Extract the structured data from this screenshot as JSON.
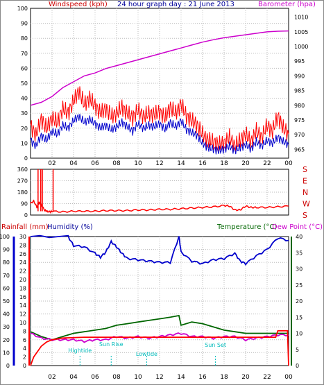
{
  "title": "24 hour graph day : 21 June 2013",
  "colors": {
    "red": "#ff0000",
    "blue": "#0000cc",
    "magenta": "#cc00cc",
    "green": "#006600",
    "cyan": "#00bbbb",
    "grid": "#bbbbbb"
  },
  "chart_data": [
    {
      "type": "line",
      "name": "wind-barometer",
      "ylabel_left": "Windspeed (kph)",
      "ylabel_right": "Barometer (hpa)",
      "y_left_ticks": [
        0,
        10,
        20,
        30,
        40,
        50,
        60,
        70,
        80,
        90,
        100
      ],
      "y_right_ticks": [
        965,
        970,
        975,
        980,
        985,
        990,
        995,
        1000,
        1005,
        1010
      ],
      "ylim_left": [
        0,
        100
      ],
      "ylim_right": [
        962,
        1013
      ],
      "x_ticks": [
        "02",
        "04",
        "06",
        "08",
        "10",
        "12",
        "14",
        "16",
        "18",
        "20",
        "22",
        "00"
      ],
      "grid": true,
      "series": [
        {
          "key": "gust",
          "color": "red",
          "x": [
            0,
            0.5,
            1,
            1.5,
            2,
            2.5,
            3,
            3.5,
            4,
            4.5,
            5,
            5.5,
            6,
            6.5,
            7,
            7.5,
            8,
            8.5,
            9,
            9.5,
            10,
            10.5,
            11,
            11.5,
            12,
            12.5,
            13,
            13.5,
            14,
            14.5,
            15,
            15.5,
            16,
            16.5,
            17,
            17.5,
            18,
            18.5,
            19,
            19.5,
            20,
            20.5,
            21,
            21.5,
            22,
            22.5,
            23,
            23.5,
            24
          ],
          "y": [
            22,
            15,
            26,
            20,
            27,
            24,
            33,
            30,
            38,
            45,
            36,
            40,
            35,
            30,
            33,
            28,
            30,
            34,
            30,
            27,
            32,
            28,
            30,
            29,
            31,
            27,
            34,
            30,
            36,
            28,
            25,
            22,
            16,
            12,
            11,
            9,
            10,
            14,
            8,
            12,
            16,
            11,
            18,
            14,
            22,
            18,
            28,
            20,
            16
          ]
        },
        {
          "key": "average",
          "color": "blue",
          "x": [
            0,
            0.5,
            1,
            1.5,
            2,
            2.5,
            3,
            3.5,
            4,
            4.5,
            5,
            5.5,
            6,
            6.5,
            7,
            7.5,
            8,
            8.5,
            9,
            9.5,
            10,
            10.5,
            11,
            11.5,
            12,
            12.5,
            13,
            13.5,
            14,
            14.5,
            15,
            15.5,
            16,
            16.5,
            17,
            17.5,
            18,
            18.5,
            19,
            19.5,
            20,
            20.5,
            21,
            21.5,
            22,
            22.5,
            23,
            23.5,
            24
          ],
          "y": [
            12,
            8,
            15,
            12,
            18,
            16,
            22,
            20,
            25,
            28,
            24,
            26,
            23,
            20,
            22,
            19,
            21,
            24,
            21,
            18,
            23,
            20,
            22,
            21,
            23,
            19,
            24,
            21,
            25,
            19,
            17,
            15,
            10,
            7,
            6,
            5,
            6,
            8,
            5,
            7,
            9,
            6,
            11,
            8,
            12,
            10,
            14,
            11,
            9
          ]
        },
        {
          "key": "barometer",
          "color": "magenta",
          "axis": "right",
          "x": [
            0,
            1,
            2,
            3,
            4,
            5,
            6,
            7,
            8,
            9,
            10,
            11,
            12,
            13,
            14,
            15,
            16,
            17,
            18,
            19,
            20,
            21,
            22,
            23,
            24
          ],
          "y": [
            980,
            981,
            983,
            986,
            988,
            990,
            991,
            992.5,
            993.5,
            994.5,
            995.5,
            996.5,
            997.5,
            998.5,
            999.5,
            1000.5,
            1001.5,
            1002.3,
            1003,
            1003.5,
            1004,
            1004.5,
            1005,
            1005.2,
            1005.3
          ]
        }
      ]
    },
    {
      "type": "line",
      "name": "wind-direction",
      "y_left_ticks": [
        0,
        90,
        180,
        270,
        360
      ],
      "ylim_left": [
        0,
        360
      ],
      "right_labels": [
        "S",
        "E",
        "N",
        "W",
        "S"
      ],
      "x": [
        0,
        0.3,
        0.6,
        0.8,
        1,
        1.3,
        1.5,
        1.8,
        2,
        3,
        4,
        5,
        6,
        7,
        8,
        9,
        10,
        11,
        12,
        13,
        14,
        15,
        16,
        17,
        18,
        18.5,
        19,
        19.5,
        20,
        20.5,
        21,
        22,
        23,
        24
      ],
      "y": [
        90,
        110,
        60,
        100,
        80,
        40,
        30,
        25,
        30,
        25,
        30,
        30,
        30,
        35,
        35,
        35,
        40,
        40,
        45,
        45,
        50,
        55,
        60,
        65,
        75,
        70,
        40,
        40,
        70,
        60,
        60,
        60,
        65,
        70
      ],
      "spikes": [
        {
          "x": 0.7,
          "y": 360
        },
        {
          "x": 0.95,
          "y": 360
        },
        {
          "x": 1.1,
          "y": 360
        },
        {
          "x": 2.1,
          "y": 360
        }
      ],
      "grid": true
    },
    {
      "type": "line",
      "name": "rain-humidity-temp",
      "ylabel_left_1": "Rainfall (mm)",
      "ylabel_left_2": "Humidity (%)",
      "ylabel_right_1": "Temperature (°C)",
      "ylabel_right_2": "Dew Point (°C)",
      "humidity_ticks": [
        0,
        10,
        20,
        30,
        40,
        50,
        60,
        70,
        80,
        90,
        100
      ],
      "rain_ticks": [
        0,
        2,
        4,
        6,
        8,
        10,
        12,
        14,
        16,
        18,
        20,
        22,
        24,
        26,
        28,
        30
      ],
      "temp_ticks": [
        0,
        5,
        10,
        15,
        20,
        25,
        30,
        35,
        40
      ],
      "ylim_temp": [
        0,
        40
      ],
      "ylim_hum": [
        0,
        100
      ],
      "x_ticks": [
        "02",
        "04",
        "06",
        "08",
        "10",
        "12",
        "14",
        "16",
        "18",
        "20",
        "22",
        "00"
      ],
      "grid": true,
      "series": [
        {
          "key": "humidity",
          "color": "blue",
          "x": [
            0,
            3.5,
            4,
            5,
            6,
            6.5,
            7,
            7.5,
            8,
            8.5,
            9,
            10,
            11,
            12,
            13,
            13.8,
            14,
            15,
            16,
            17,
            18,
            19,
            19.5,
            20,
            21,
            22,
            23,
            24
          ],
          "y": [
            100,
            100,
            93,
            92,
            87,
            84,
            88,
            96,
            92,
            87,
            83,
            82,
            81,
            80,
            80,
            100,
            88,
            81,
            79,
            82,
            83,
            87,
            81,
            79,
            85,
            90,
            99,
            97
          ]
        },
        {
          "key": "temperature",
          "color": "green",
          "x": [
            0,
            1,
            2,
            3,
            4,
            5,
            6,
            7,
            8,
            9,
            10,
            11,
            12,
            13,
            13.8,
            14,
            15,
            16,
            17,
            18,
            19,
            20,
            21,
            22,
            23,
            24
          ],
          "y": [
            10.5,
            9,
            8,
            9,
            10,
            10.5,
            11,
            11.5,
            12.5,
            13,
            13.5,
            14,
            14.5,
            15,
            15.5,
            12.5,
            13.5,
            13,
            12,
            11,
            10.5,
            10,
            10,
            10,
            10,
            10
          ]
        },
        {
          "key": "dewpoint",
          "color": "magenta",
          "x": [
            0,
            1,
            2,
            3,
            4,
            5,
            6,
            7,
            8,
            9,
            10,
            11,
            12,
            13,
            14,
            15,
            16,
            17,
            18,
            19,
            20,
            21,
            22,
            23,
            24
          ],
          "y": [
            10,
            8.5,
            8,
            8,
            8,
            7.5,
            8,
            8,
            9,
            8.5,
            9,
            8.5,
            9,
            9.5,
            10,
            9,
            9,
            8.5,
            9,
            9,
            8,
            8.5,
            9,
            9.5,
            9.5
          ]
        },
        {
          "key": "rainfall",
          "color": "red",
          "axis": "rain",
          "x": [
            0,
            0.3,
            1,
            1.5,
            2,
            3,
            5,
            10,
            20,
            22.8,
            23,
            23.9,
            24
          ],
          "y": [
            0,
            2,
            4.5,
            5.5,
            6,
            6.4,
            6.6,
            6.6,
            6.6,
            6.6,
            8.1,
            8.1,
            0
          ]
        }
      ],
      "annotations": [
        {
          "label": "Hightide",
          "x": 4.6
        },
        {
          "label": "Sun Rise",
          "x": 7.5
        },
        {
          "label": "Lowtide",
          "x": 10.8
        },
        {
          "label": "Sun Set",
          "x": 17.2
        }
      ]
    }
  ]
}
